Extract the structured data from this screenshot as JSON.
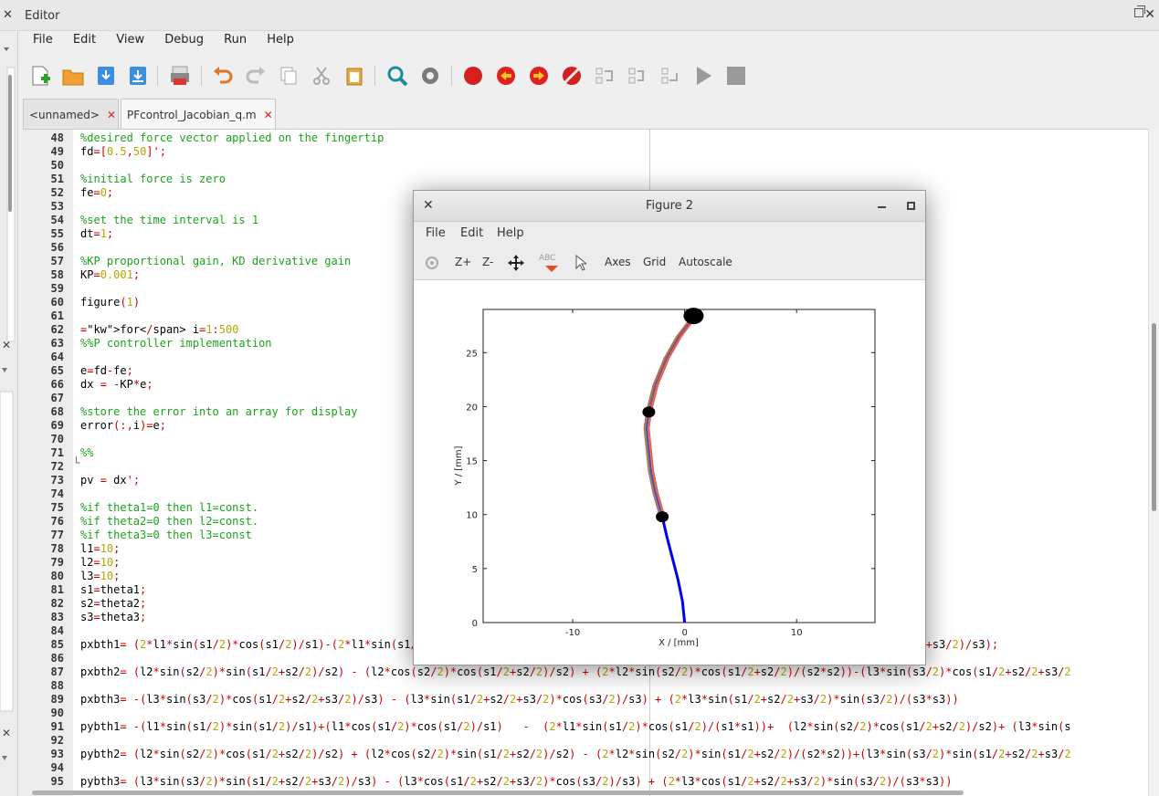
{
  "window": {
    "title": "Editor",
    "close_glyph": "✕"
  },
  "menu": [
    "File",
    "Edit",
    "View",
    "Debug",
    "Run",
    "Help"
  ],
  "toolbar": {
    "icons": [
      "new-file-icon",
      "open-folder-icon",
      "save-icon",
      "save-as-icon",
      "print-icon",
      "undo-icon",
      "redo-icon",
      "copy-icon",
      "cut-icon",
      "paste-icon",
      "find-icon",
      "settings-icon",
      "breakpoint-icon",
      "previous-breakpoint-icon",
      "next-breakpoint-icon",
      "remove-breakpoints-icon",
      "step-over-icon",
      "step-in-icon",
      "step-out-icon",
      "run-icon",
      "stop-icon"
    ]
  },
  "tabs": [
    {
      "label": "<unnamed>",
      "close": "✕",
      "active": false
    },
    {
      "label": "PFcontrol_Jacobian_q.m",
      "close": "✕",
      "active": true
    }
  ],
  "code": [
    {
      "n": "48",
      "t": "%desired force vector applied on the fingertip"
    },
    {
      "n": "49",
      "t": "fd=[0.5,50]';"
    },
    {
      "n": "50",
      "t": ""
    },
    {
      "n": "51",
      "t": "%initial force is zero"
    },
    {
      "n": "52",
      "t": "fe=0;"
    },
    {
      "n": "53",
      "t": ""
    },
    {
      "n": "54",
      "t": "%set the time interval is 1"
    },
    {
      "n": "55",
      "t": "dt=1;"
    },
    {
      "n": "56",
      "t": ""
    },
    {
      "n": "57",
      "t": "%KP proportional gain, KD derivative gain"
    },
    {
      "n": "58",
      "t": "KP=0.001;"
    },
    {
      "n": "59",
      "t": ""
    },
    {
      "n": "60",
      "t": "figure(1)"
    },
    {
      "n": "61",
      "t": ""
    },
    {
      "n": "62",
      "t": "for i=1:500"
    },
    {
      "n": "63",
      "t": "%%P controller implementation"
    },
    {
      "n": "64",
      "t": ""
    },
    {
      "n": "65",
      "t": "e=fd-fe;"
    },
    {
      "n": "66",
      "t": "dx = -KP*e;"
    },
    {
      "n": "67",
      "t": ""
    },
    {
      "n": "68",
      "t": "%store the error into an array for display"
    },
    {
      "n": "69",
      "t": "error(:,i)=e;"
    },
    {
      "n": "70",
      "t": ""
    },
    {
      "n": "71",
      "t": "%%"
    },
    {
      "n": "72",
      "t": ""
    },
    {
      "n": "73",
      "t": "pv = dx';"
    },
    {
      "n": "74",
      "t": ""
    },
    {
      "n": "75",
      "t": "%if theta1=0 then l1=const."
    },
    {
      "n": "76",
      "t": "%if theta2=0 then l2=const."
    },
    {
      "n": "77",
      "t": "%if theta3=0 then l3=const"
    },
    {
      "n": "78",
      "t": "l1=10;"
    },
    {
      "n": "79",
      "t": "l2=10;"
    },
    {
      "n": "80",
      "t": "l3=10;"
    },
    {
      "n": "81",
      "t": "s1=theta1;"
    },
    {
      "n": "82",
      "t": "s2=theta2;"
    },
    {
      "n": "83",
      "t": "s3=theta3;"
    },
    {
      "n": "84",
      "t": ""
    },
    {
      "n": "85",
      "t": "pxbth1= (2*l1*sin(s1/2)*cos(s1/2)/s1)-(2*l1*sin(s1/2)*sin(s1/2)/s1)+(l2*sin(s2/2)*cos(s1/2+s2/2)/s2)+(l3*sin(s3/2)*cos(s1/2+s2/2+s3/2)/s3);"
    },
    {
      "n": "86",
      "t": ""
    },
    {
      "n": "87",
      "t": "pxbth2= (l2*sin(s2/2)*sin(s1/2+s2/2)/s2) - (l2*cos(s2/2)*cos(s1/2+s2/2)/s2) + (2*l2*sin(s2/2)*cos(s1/2+s2/2)/(s2*s2))-(l3*sin(s3/2)*cos(s1/2+s2/2+s3/2"
    },
    {
      "n": "88",
      "t": ""
    },
    {
      "n": "89",
      "t": "pxbth3= -(l3*sin(s3/2)*cos(s1/2+s2/2+s3/2)/s3) - (l3*sin(s1/2+s2/2+s3/2)*cos(s3/2)/s3) + (2*l3*sin(s1/2+s2/2+s3/2)*sin(s3/2)/(s3*s3))"
    },
    {
      "n": "90",
      "t": ""
    },
    {
      "n": "91",
      "t": "pybth1= -(l1*sin(s1/2)*sin(s1/2)/s1)+(l1*cos(s1/2)*cos(s1/2)/s1)   -  (2*l1*sin(s1/2)*cos(s1/2)/(s1*s1))+  (l2*sin(s2/2)*cos(s1/2+s2/2)/s2)+ (l3*sin(s"
    },
    {
      "n": "92",
      "t": ""
    },
    {
      "n": "93",
      "t": "pybth2= (l2*sin(s2/2)*cos(s1/2+s2/2)/s2) + (l2*cos(s2/2)*sin(s1/2+s2/2)/s2) - (2*l2*sin(s2/2)*sin(s1/2+s2/2)/(s2*s2))+(l3*sin(s3/2)*sin(s1/2+s2/2+s3/2"
    },
    {
      "n": "94",
      "t": ""
    },
    {
      "n": "95",
      "t": "pybth3= (l3*sin(s3/2)*sin(s1/2+s2/2+s3/2)/s3) - (l3*cos(s1/2+s2/2+s3/2)*cos(s3/2)/s3) + (2*l3*cos(s1/2+s2/2+s3/2)*sin(s3/2)/(s3*s3))"
    }
  ],
  "figure": {
    "title": "Figure 2",
    "close_glyph": "✕",
    "menu": [
      "File",
      "Edit",
      "Help"
    ],
    "tools": {
      "zoom_in": "Z+",
      "zoom_out": "Z-",
      "text_tool": "ABC",
      "axes": "Axes",
      "grid": "Grid",
      "autoscale": "Autoscale"
    }
  },
  "chart_data": {
    "type": "line",
    "xlabel": "X / [mm]",
    "ylabel": "Y / [mm]",
    "xlim": [
      -18,
      17
    ],
    "ylim": [
      0,
      29
    ],
    "xticks": [
      -10,
      0,
      10
    ],
    "yticks": [
      0,
      5,
      10,
      15,
      20,
      25
    ],
    "grid": false,
    "legend": "none",
    "series": [
      {
        "color": "#0000ee",
        "x": [
          0,
          -0.2,
          -0.6,
          -1.1,
          -1.6,
          -2.0
        ],
        "y": [
          0,
          2,
          4,
          6,
          8,
          9.8
        ]
      },
      {
        "color": "#7a3fa8",
        "x": [
          -2.0,
          -2.6,
          -3.0,
          -3.2,
          -3.4,
          -3.2
        ],
        "y": [
          9.8,
          12,
          14,
          16,
          18,
          19.5
        ]
      },
      {
        "color": "#b04070",
        "x": [
          -3.2,
          -2.6,
          -1.6,
          -0.5,
          0.6,
          1.0
        ],
        "y": [
          19.5,
          22,
          24.5,
          26.5,
          28,
          28.6
        ]
      }
    ],
    "joints": [
      {
        "x": -2.0,
        "y": 9.8
      },
      {
        "x": -3.2,
        "y": 19.5
      },
      {
        "x": 0.8,
        "y": 28.4
      }
    ]
  }
}
